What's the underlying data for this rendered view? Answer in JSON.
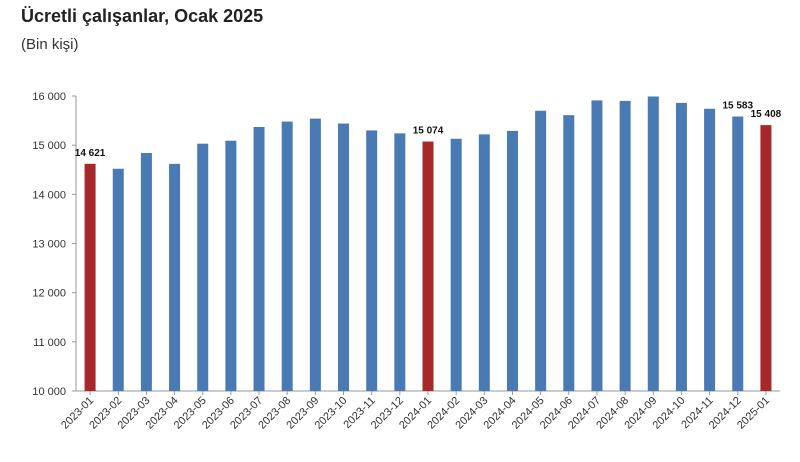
{
  "title": "Ücretli çalışanlar, Ocak 2025",
  "subtitle": "(Bin kişi)",
  "chart_data": {
    "type": "bar",
    "title": "Ücretli çalışanlar, Ocak 2025",
    "subtitle": "(Bin kişi)",
    "xlabel": "",
    "ylabel": "",
    "ylim": [
      10000,
      16000
    ],
    "yticks": [
      10000,
      11000,
      12000,
      13000,
      14000,
      15000,
      16000
    ],
    "ytick_labels": [
      "10 000",
      "11 000",
      "12 000",
      "13 000",
      "14 000",
      "15 000",
      "16 000"
    ],
    "grid": false,
    "categories": [
      "2023-01",
      "2023-02",
      "2023-03",
      "2023-04",
      "2023-05",
      "2023-06",
      "2023-07",
      "2023-08",
      "2023-09",
      "2023-10",
      "2023-11",
      "2023-12",
      "2024-01",
      "2024-02",
      "2024-03",
      "2024-04",
      "2024-05",
      "2024-06",
      "2024-07",
      "2024-08",
      "2024-09",
      "2024-10",
      "2024-11",
      "2024-12",
      "2025-01"
    ],
    "values": [
      14621,
      14520,
      14840,
      14620,
      15030,
      15090,
      15370,
      15480,
      15540,
      15440,
      15300,
      15240,
      15074,
      15130,
      15220,
      15290,
      15700,
      15610,
      15910,
      15900,
      15990,
      15860,
      15740,
      15583,
      15408
    ],
    "highlight": [
      true,
      false,
      false,
      false,
      false,
      false,
      false,
      false,
      false,
      false,
      false,
      false,
      true,
      false,
      false,
      false,
      false,
      false,
      false,
      false,
      false,
      false,
      false,
      false,
      true
    ],
    "data_labels": [
      {
        "category": "2023-01",
        "text": "14 621"
      },
      {
        "category": "2024-01",
        "text": "15 074"
      },
      {
        "category": "2024-12",
        "text": "15 583"
      },
      {
        "category": "2025-01",
        "text": "15 408"
      }
    ],
    "colors": {
      "bar": "#4a7ab4",
      "highlight": "#a6282a",
      "axis": "#999999"
    }
  }
}
